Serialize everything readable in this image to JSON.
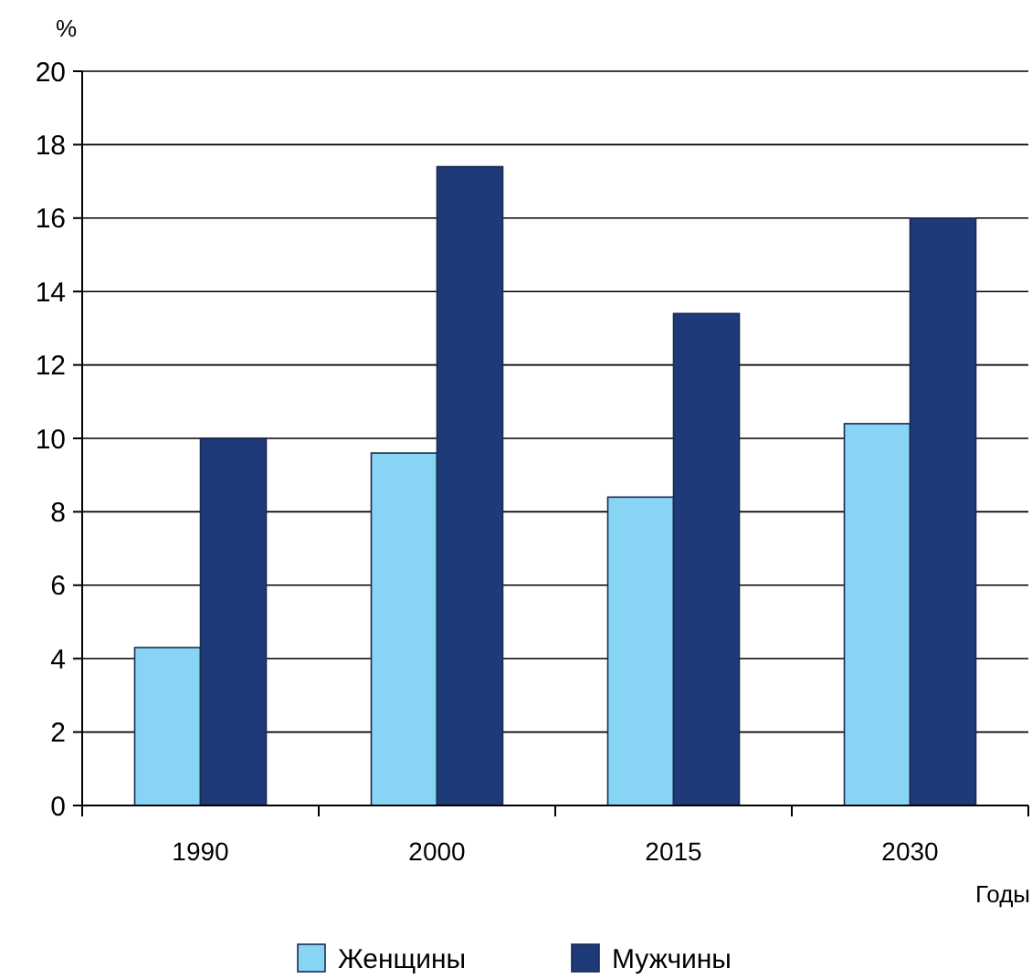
{
  "chart_data": {
    "type": "bar",
    "ylabel": "%",
    "xlabel": "Годы",
    "categories": [
      "1990",
      "2000",
      "2015",
      "2030"
    ],
    "series": [
      {
        "name": "Женщины",
        "color": "#87d4f5",
        "values": [
          4.3,
          9.6,
          8.4,
          10.4
        ]
      },
      {
        "name": "Мужчины",
        "color": "#1f3a78",
        "values": [
          10.0,
          17.4,
          13.4,
          16.0
        ]
      }
    ],
    "ylim": [
      0,
      20
    ],
    "yticks": [
      0,
      2,
      4,
      6,
      8,
      10,
      12,
      14,
      16,
      18,
      20
    ],
    "grid": "y",
    "legend": "bottom"
  }
}
